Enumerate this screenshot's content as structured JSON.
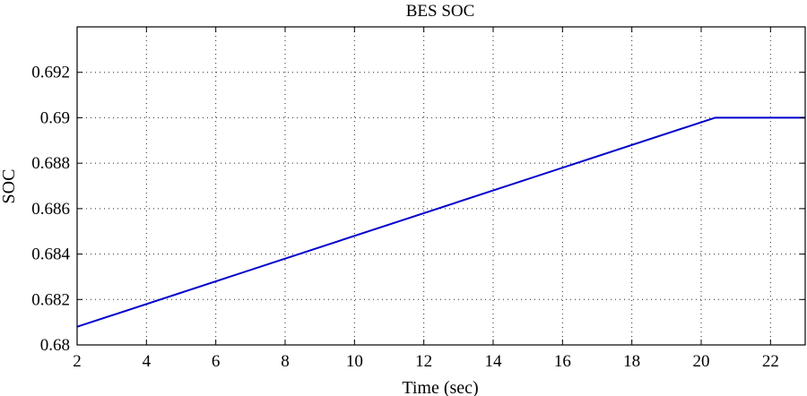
{
  "chart_data": {
    "type": "line",
    "title": "BES SOC",
    "xlabel": "Time (sec)",
    "ylabel": "SOC",
    "xlim": [
      2,
      23
    ],
    "ylim": [
      0.68,
      0.694
    ],
    "xticks": [
      2,
      4,
      6,
      8,
      10,
      12,
      14,
      16,
      18,
      20,
      22
    ],
    "xtick_labels": [
      "2",
      "4",
      "6",
      "8",
      "10",
      "12",
      "14",
      "16",
      "18",
      "20",
      "22"
    ],
    "yticks": [
      0.68,
      0.682,
      0.684,
      0.686,
      0.688,
      0.69,
      0.692
    ],
    "ytick_labels": [
      "0.68",
      "0.682",
      "0.684",
      "0.686",
      "0.688",
      "0.69",
      "0.692"
    ],
    "grid": true,
    "series": [
      {
        "color": "#0000cc",
        "x": [
          2,
          20.4,
          23
        ],
        "y": [
          0.6808,
          0.69,
          0.69
        ]
      }
    ]
  }
}
